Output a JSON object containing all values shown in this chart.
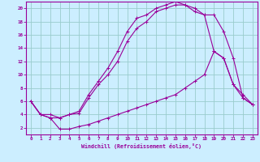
{
  "bg_color": "#cceeff",
  "line_color": "#990099",
  "grid_color": "#99cccc",
  "xlim": [
    -0.5,
    23.5
  ],
  "ylim": [
    1,
    21
  ],
  "xticks": [
    0,
    1,
    2,
    3,
    4,
    5,
    6,
    7,
    8,
    9,
    10,
    11,
    12,
    13,
    14,
    15,
    16,
    17,
    18,
    19,
    20,
    21,
    22,
    23
  ],
  "yticks": [
    2,
    4,
    6,
    8,
    10,
    12,
    14,
    16,
    18,
    20
  ],
  "xlabel": "Windchill (Refroidissement éolien,°C)",
  "hours": [
    0,
    1,
    2,
    3,
    4,
    5,
    6,
    7,
    8,
    9,
    10,
    11,
    12,
    13,
    14,
    15,
    16,
    17,
    18,
    19,
    20,
    21,
    22,
    23
  ],
  "line_top": [
    6,
    4,
    4,
    3.5,
    4,
    4.5,
    7,
    9,
    11,
    13.5,
    16.5,
    18.5,
    19,
    20,
    20.5,
    21,
    20.5,
    20,
    19,
    19,
    16.5,
    12.5,
    6.5,
    5.5
  ],
  "line_mid": [
    6,
    4,
    3.5,
    3.5,
    4,
    4.2,
    6.5,
    8.5,
    10,
    12,
    15,
    17,
    18,
    19.5,
    20,
    20.5,
    20.5,
    19.5,
    19,
    13.5,
    12.5,
    8.5,
    7,
    5.5
  ],
  "line_bot": [
    6,
    4,
    3.5,
    1.8,
    1.8,
    2.2,
    2.5,
    3,
    3.5,
    4,
    4.5,
    5,
    5.5,
    6,
    6.5,
    7,
    8,
    9,
    10,
    13.5,
    12.5,
    8.5,
    6.5,
    5.5
  ]
}
